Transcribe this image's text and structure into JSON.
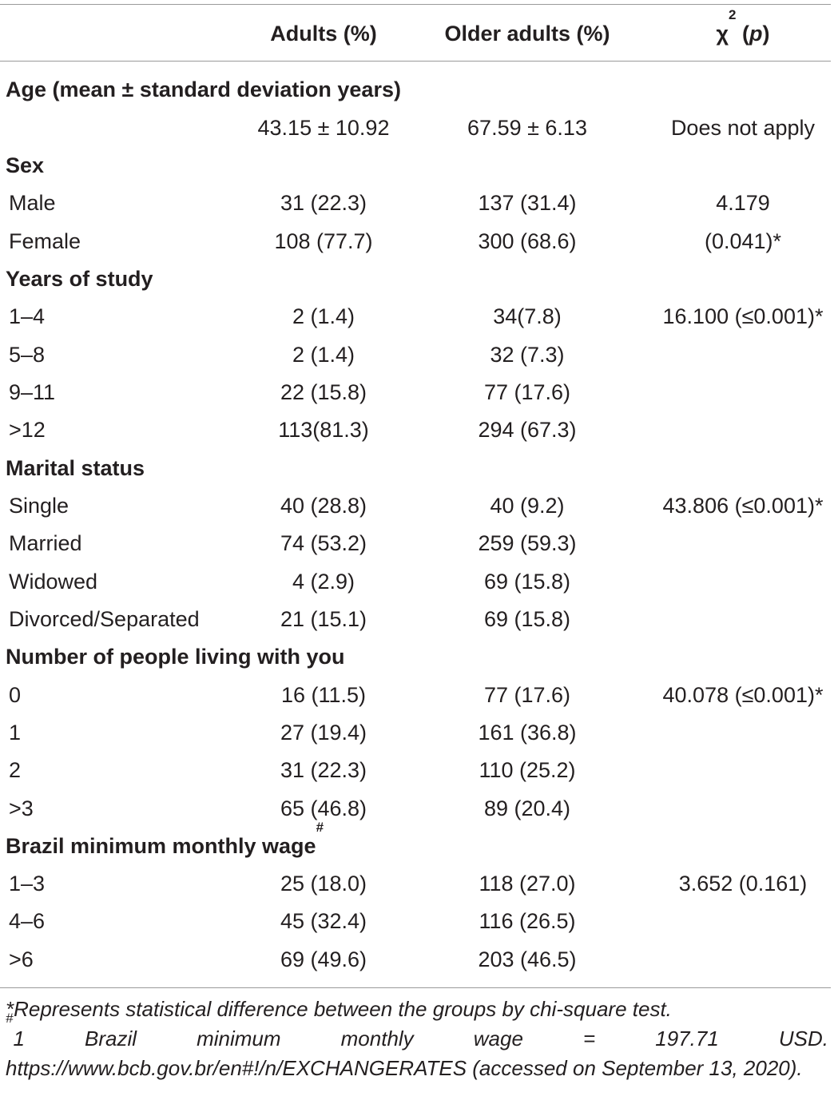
{
  "header": {
    "adults": "Adults (%)",
    "older": "Older adults (%)",
    "chi_symbol": "χ",
    "chi_sup": "2",
    "chi_open": " (",
    "chi_p": "p",
    "chi_close": ")"
  },
  "age": {
    "section": "Age (mean ± standard deviation years)",
    "adults": "43.15 ± 10.92",
    "older": "67.59 ± 6.13",
    "chi": "Does not apply"
  },
  "sex": {
    "section": "Sex",
    "rows": [
      {
        "label": "Male",
        "adults": "31 (22.3)",
        "older": "137 (31.4)",
        "chi": "4.179"
      },
      {
        "label": "Female",
        "adults": "108 (77.7)",
        "older": "300 (68.6)",
        "chi": "(0.041)*"
      }
    ]
  },
  "study": {
    "section": "Years of study",
    "rows": [
      {
        "label": "1–4",
        "adults": "2 (1.4)",
        "older": "34(7.8)",
        "chi": "16.100 (≤0.001)*"
      },
      {
        "label": "5–8",
        "adults": "2 (1.4)",
        "older": "32 (7.3)",
        "chi": ""
      },
      {
        "label": "9–11",
        "adults": "22 (15.8)",
        "older": "77 (17.6)",
        "chi": ""
      },
      {
        "label": ">12",
        "adults": "113(81.3)",
        "older": "294 (67.3)",
        "chi": ""
      }
    ]
  },
  "marital": {
    "section": "Marital status",
    "rows": [
      {
        "label": "Single",
        "adults": "40 (28.8)",
        "older": "40 (9.2)",
        "chi": "43.806 (≤0.001)*"
      },
      {
        "label": "Married",
        "adults": "74 (53.2)",
        "older": "259 (59.3)",
        "chi": ""
      },
      {
        "label": "Widowed",
        "adults": "4 (2.9)",
        "older": "69 (15.8)",
        "chi": ""
      },
      {
        "label": "Divorced/Separated",
        "adults": "21 (15.1)",
        "older": "69 (15.8)",
        "chi": ""
      }
    ]
  },
  "people": {
    "section": "Number of people living with you",
    "rows": [
      {
        "label": "0",
        "adults": "16 (11.5)",
        "older": "77 (17.6)",
        "chi": "40.078 (≤0.001)*"
      },
      {
        "label": "1",
        "adults": "27 (19.4)",
        "older": "161 (36.8)",
        "chi": ""
      },
      {
        "label": "2",
        "adults": "31 (22.3)",
        "older": "110 (25.2)",
        "chi": ""
      },
      {
        "label": ">3",
        "adults": "65 (46.8)",
        "older": "89 (20.4)",
        "chi": ""
      }
    ]
  },
  "wage": {
    "section": "Brazil minimum monthly wage",
    "section_sup": "#",
    "rows": [
      {
        "label": "1–3",
        "adults": "25 (18.0)",
        "older": "118 (27.0)",
        "chi": "3.652 (0.161)"
      },
      {
        "label": "4–6",
        "adults": "45 (32.4)",
        "older": "116 (26.5)",
        "chi": ""
      },
      {
        "label": ">6",
        "adults": "69 (49.6)",
        "older": "203 (46.5)",
        "chi": ""
      }
    ]
  },
  "footnotes": {
    "note1": "*Represents statistical difference between the groups by chi-square test.",
    "note2_mark": "#",
    "note2": "1 Brazil minimum monthly wage = 197.71 USD. https://www.bcb.gov.br/en#!/n/EXCHANGERATES (accessed on September 13, 2020)."
  }
}
